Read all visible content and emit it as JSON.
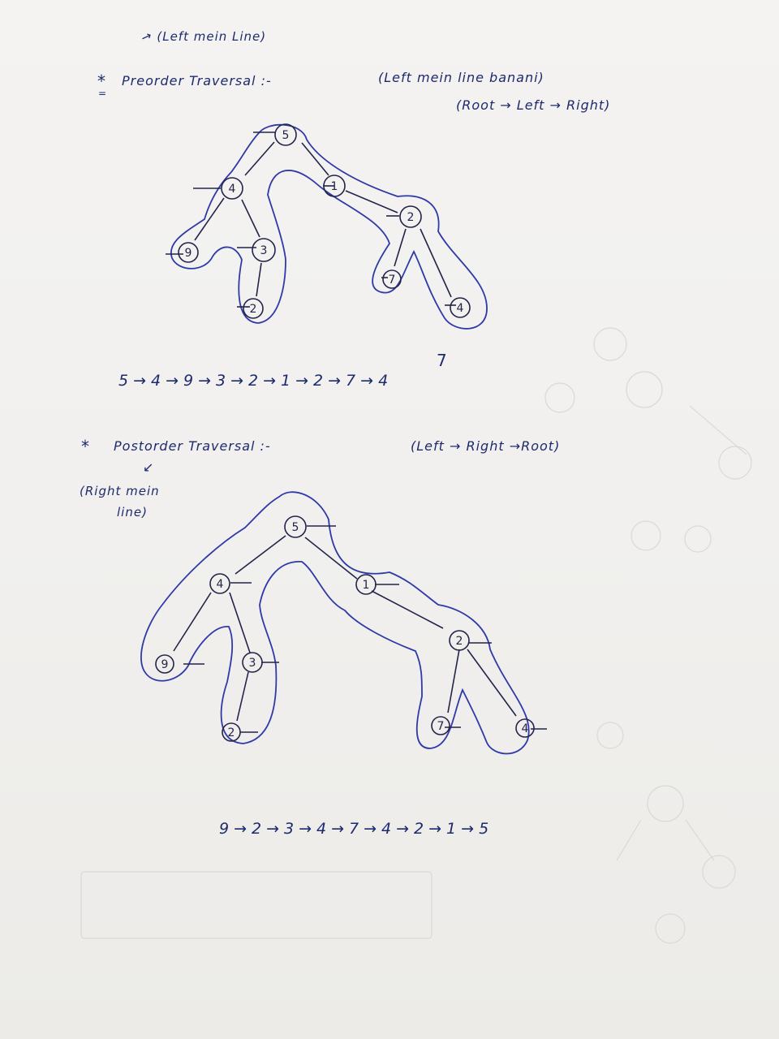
{
  "preorder": {
    "star": "*",
    "note": "(Left mein Line)",
    "heading": "Preorder Traversal :-",
    "hint": "(Left mein line banani)",
    "order": "(Root → Left → Right)",
    "correction": "7",
    "sequence": "5→4→9→3→2→1→2→7→4",
    "nodes": [
      "5",
      "4",
      "1",
      "9",
      "3",
      "2",
      "2",
      "7",
      "4"
    ]
  },
  "postorder": {
    "star": "*",
    "heading": "Postorder Traversal :-",
    "order": "(Left → Right →Root)",
    "arrow": "↙",
    "note_line1": "(Right mein",
    "note_line2": "line)",
    "sequence": "9→2→3→4→7→4→2→1→5",
    "nodes": [
      "5",
      "4",
      "1",
      "9",
      "3",
      "2",
      "2",
      "7",
      "4"
    ]
  },
  "colors": {
    "ink_blue": "#1d2a6e",
    "pen_blue": "#2f3aa8",
    "ink_dark": "#23244a"
  }
}
